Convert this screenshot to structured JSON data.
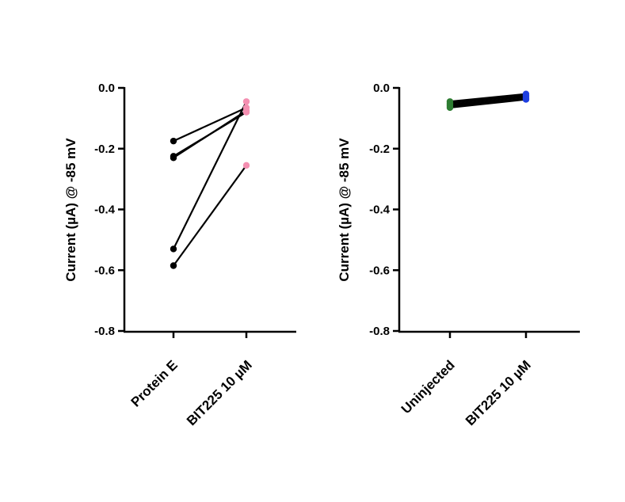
{
  "chart_data": [
    {
      "type": "line",
      "panel": "left",
      "title": "",
      "ylabel": "Current (µA) @ -85 mV",
      "xlabel": "",
      "categories": [
        "Protein E",
        "BIT225 10 µM"
      ],
      "ylim": [
        -0.8,
        0.0
      ],
      "yticks": [
        "0.0",
        "-0.2",
        "-0.4",
        "-0.6",
        "-0.8"
      ],
      "ytick_values": [
        0.0,
        -0.2,
        -0.4,
        -0.6,
        -0.8
      ],
      "grid": false,
      "point_colors": [
        "#000000",
        "#f48fb1"
      ],
      "pairs": [
        [
          -0.175,
          -0.065
        ],
        [
          -0.225,
          -0.08
        ],
        [
          -0.23,
          -0.075
        ],
        [
          -0.53,
          -0.045
        ],
        [
          -0.585,
          -0.255
        ]
      ]
    },
    {
      "type": "line",
      "panel": "right",
      "title": "",
      "ylabel": "Current (µA) @ -85 mV",
      "xlabel": "",
      "categories": [
        "Uninjected",
        "BIT225 10 µM"
      ],
      "ylim": [
        -0.8,
        0.0
      ],
      "yticks": [
        "0.0",
        "-0.2",
        "-0.4",
        "-0.6",
        "-0.8"
      ],
      "ytick_values": [
        0.0,
        -0.2,
        -0.4,
        -0.6,
        -0.8
      ],
      "grid": false,
      "point_colors": [
        "#2e7d32",
        "#1e3fe0"
      ],
      "pairs": [
        [
          -0.045,
          -0.02
        ],
        [
          -0.05,
          -0.025
        ],
        [
          -0.055,
          -0.03
        ],
        [
          -0.06,
          -0.035
        ],
        [
          -0.065,
          -0.038
        ]
      ]
    }
  ]
}
